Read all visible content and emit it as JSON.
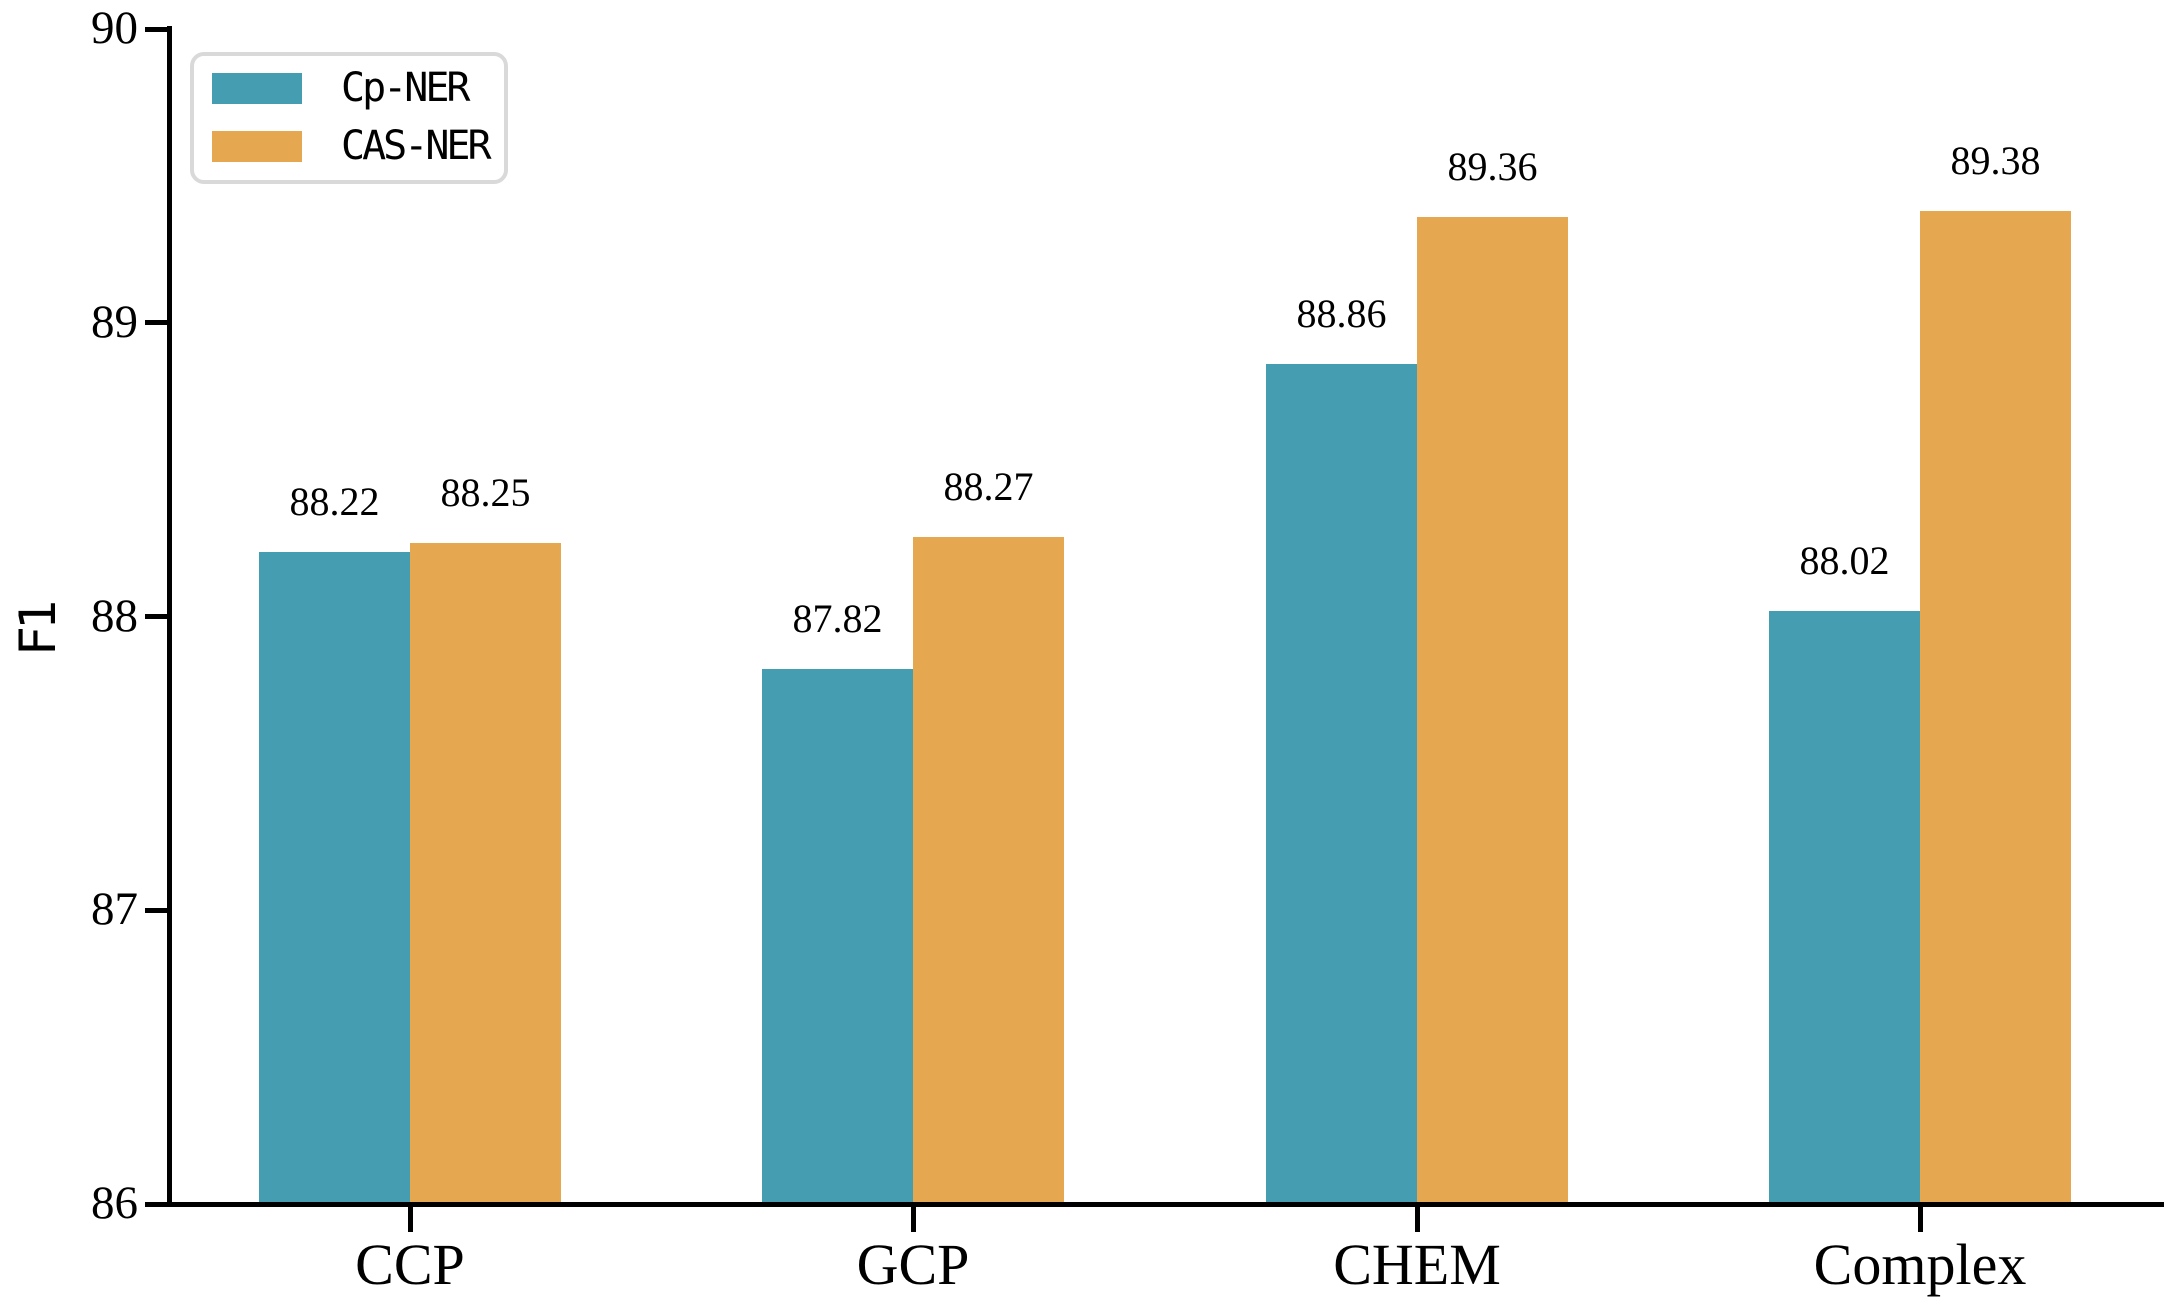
{
  "chart_data": {
    "type": "bar",
    "title": "",
    "xlabel": "",
    "ylabel": "F1",
    "categories": [
      "CCP",
      "GCP",
      "CHEM",
      "Complex"
    ],
    "series": [
      {
        "name": "Cp-NER",
        "color": "#449DB0",
        "values": [
          88.22,
          87.82,
          88.86,
          88.02
        ]
      },
      {
        "name": "CAS-NER",
        "color": "#E6A751",
        "values": [
          88.25,
          88.27,
          89.36,
          89.38
        ]
      }
    ],
    "ylim": [
      86,
      90
    ],
    "yticks": [
      86,
      87,
      88,
      89,
      90
    ],
    "value_label_decimals": 2,
    "grid": false,
    "legend_position": "upper-left",
    "spines": "left-bottom-only"
  }
}
